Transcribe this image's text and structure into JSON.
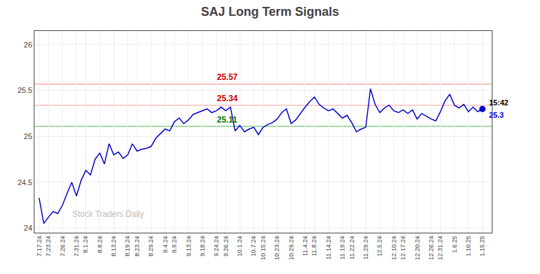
{
  "chart_data": {
    "type": "line",
    "title": "SAJ Long Term Signals",
    "categories": [
      "7.17.24",
      null,
      "7.23.24",
      null,
      null,
      "7.26.24",
      null,
      null,
      "7.31.24",
      null,
      "8.1.24",
      null,
      null,
      "8.8.24",
      null,
      null,
      "8.13.24",
      null,
      null,
      "8.19.24",
      null,
      "8.23.24",
      null,
      null,
      "8.29.24",
      null,
      null,
      "9.4.24",
      null,
      "9.9.24",
      null,
      null,
      "9.13.24",
      null,
      null,
      "9.18.24",
      null,
      null,
      "9.24.24",
      null,
      "9.26.24",
      null,
      null,
      "10.1.24",
      null,
      null,
      "10.7.24",
      null,
      "10.15.24",
      null,
      null,
      "10.23.24",
      null,
      null,
      "10.29.24",
      null,
      null,
      "11.4.24",
      null,
      "11.8.24",
      null,
      null,
      "11.14.24",
      null,
      null,
      "11.19.24",
      null,
      "11.22.24",
      null,
      null,
      "11.29.24",
      null,
      null,
      "12.5.24",
      null,
      null,
      "12.10.24",
      null,
      "12.17.24",
      null,
      null,
      "12.20.24",
      null,
      null,
      "12.26.24",
      null,
      "12.31.24",
      null,
      null,
      "1.6.25",
      null,
      null,
      "1.10.25",
      null,
      null,
      "1.15.25"
    ],
    "values": [
      24.33,
      24.05,
      24.12,
      24.18,
      24.16,
      24.25,
      24.38,
      24.5,
      24.35,
      24.52,
      24.63,
      24.58,
      24.75,
      24.82,
      24.7,
      24.92,
      24.8,
      24.83,
      24.76,
      24.8,
      24.92,
      24.84,
      24.86,
      24.87,
      24.89,
      24.98,
      25.03,
      25.08,
      25.06,
      25.16,
      25.2,
      25.14,
      25.18,
      25.24,
      25.26,
      25.28,
      25.3,
      25.26,
      25.28,
      25.32,
      25.28,
      25.32,
      25.06,
      25.12,
      25.05,
      25.08,
      25.1,
      25.02,
      25.1,
      25.13,
      25.15,
      25.19,
      25.26,
      25.3,
      25.14,
      25.18,
      25.25,
      25.32,
      25.38,
      25.43,
      25.35,
      25.31,
      25.28,
      25.3,
      25.25,
      25.2,
      25.23,
      25.15,
      25.05,
      25.08,
      25.1,
      25.52,
      25.35,
      25.26,
      25.31,
      25.34,
      25.28,
      25.26,
      25.29,
      25.25,
      25.29,
      25.19,
      25.25,
      25.22,
      25.19,
      25.17,
      25.27,
      25.39,
      25.46,
      25.34,
      25.31,
      25.35,
      25.27,
      25.32,
      25.27,
      25.3
    ],
    "color": "#0000cc",
    "ylim": [
      23.95,
      26.15
    ],
    "yticks": [
      24,
      24.5,
      25,
      25.5,
      26
    ],
    "grid": true,
    "hlines": [
      {
        "y": 25.57,
        "label": "25.57",
        "color": "#ffaaaa",
        "label_color": "#cc0000"
      },
      {
        "y": 25.34,
        "label": "25.34",
        "color": "#ffbbbb",
        "label_color": "#cc0000"
      },
      {
        "y": 25.11,
        "label": "25.11",
        "color": "#88cc88",
        "label_color": "#007700"
      }
    ],
    "last_point": {
      "label": "15:42",
      "value": 25.3,
      "value_label": "25.3",
      "color": "#0000cc"
    },
    "watermark": "Stock Traders Daily"
  }
}
